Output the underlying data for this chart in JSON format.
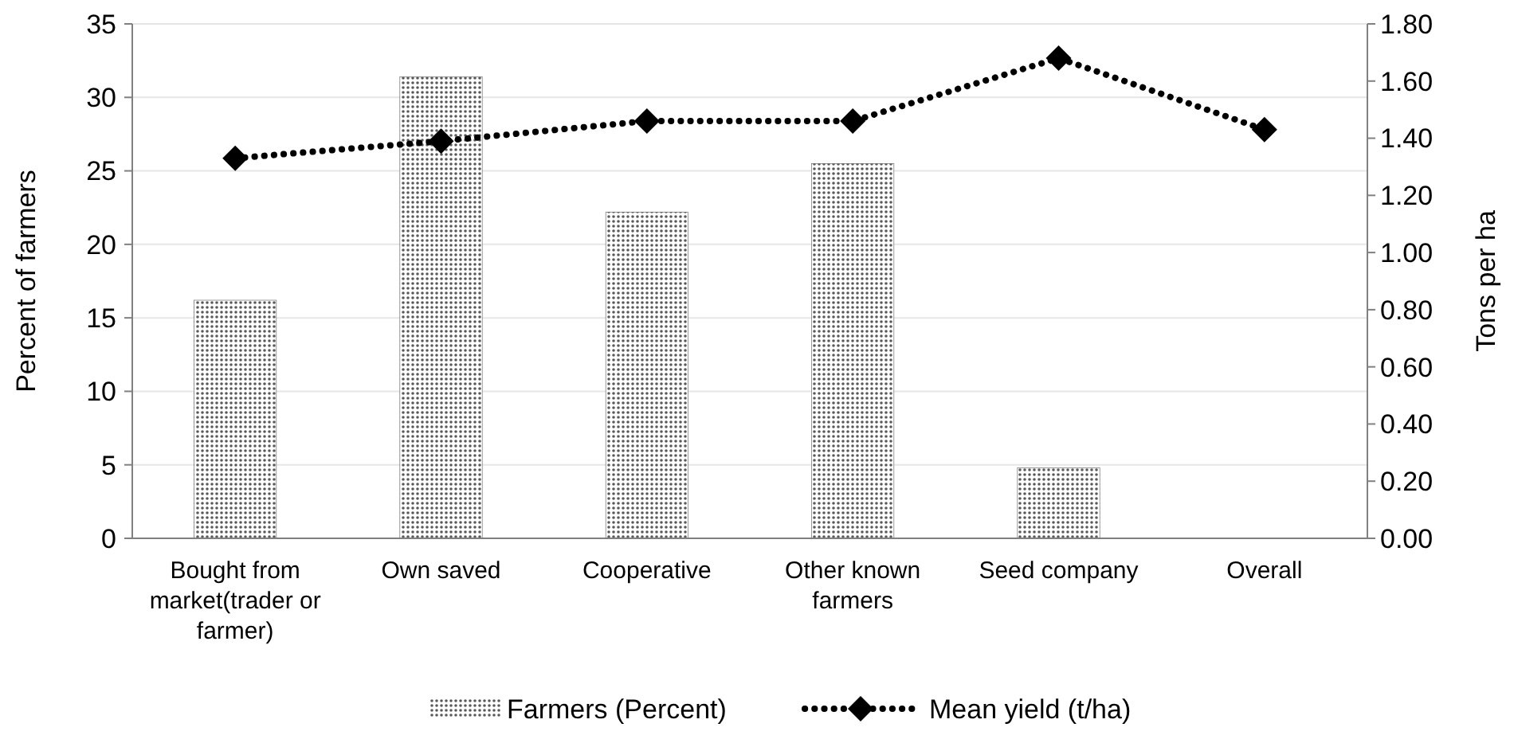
{
  "chart_data": {
    "type": "bar",
    "xlabel": null,
    "ylabel": "Percent of farmers",
    "y2label": "Tons per ha",
    "categories": [
      "Bought from market(trader or farmer)",
      "Own saved",
      "Cooperative",
      "Other known farmers",
      "Seed company",
      "Overall"
    ],
    "series": [
      {
        "name": "Farmers (Percent)",
        "color": "#595959",
        "values": [
          16.2,
          31.4,
          22.2,
          25.5,
          4.8,
          null
        ]
      },
      {
        "name": "Mean yield (t/ha)",
        "type": "line",
        "axis": "y2",
        "color": "#000000",
        "marker": "diamond",
        "line_style": "dotted",
        "values": [
          1.33,
          1.39,
          1.46,
          1.46,
          1.68,
          1.43
        ]
      }
    ],
    "ylim": [
      0,
      35
    ],
    "yticks": [
      0,
      5,
      10,
      15,
      20,
      25,
      30,
      35
    ],
    "y2lim": [
      0,
      1.8
    ],
    "y2ticks": [
      {
        "value": 0,
        "label": "0.00"
      },
      {
        "value": 0.2,
        "label": "0.20"
      },
      {
        "value": 0.4,
        "label": "0.40"
      },
      {
        "value": 0.6,
        "label": "0.60"
      },
      {
        "value": 0.8,
        "label": "0.80"
      },
      {
        "value": 1,
        "label": "1.00"
      },
      {
        "value": 1.2,
        "label": "1.20"
      },
      {
        "value": 1.4,
        "label": "1.40"
      },
      {
        "value": 1.6,
        "label": "1.60"
      },
      {
        "value": 1.8,
        "label": "1.80"
      }
    ],
    "grid": "y",
    "legend": "bottom"
  }
}
